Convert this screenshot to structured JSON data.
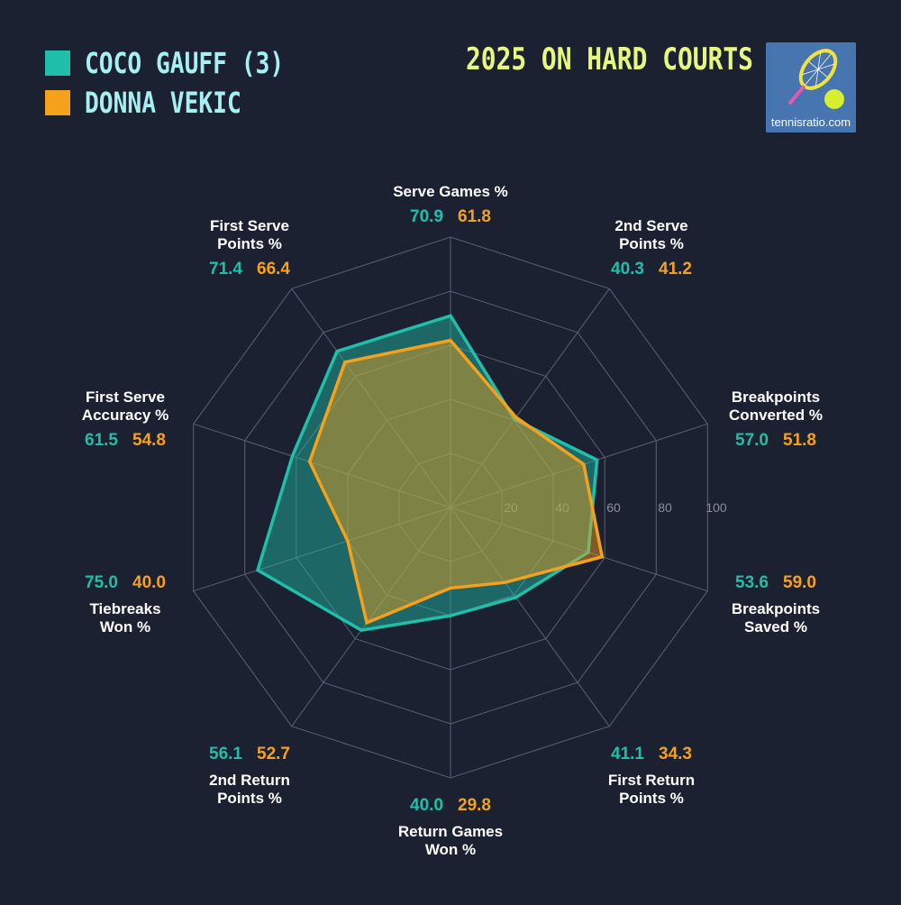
{
  "title": "2025 ON HARD COURTS",
  "logo_text": "tennisratio.com",
  "chart_data": {
    "type": "radar",
    "series": [
      {
        "name": "COCO GAUFF (3)",
        "color": "#1fbfa9",
        "values": [
          70.9,
          40.3,
          57.0,
          53.6,
          41.1,
          40.0,
          56.1,
          75.0,
          61.5,
          71.4
        ]
      },
      {
        "name": "DONNA VEKIC",
        "color": "#f6a11c",
        "values": [
          61.8,
          41.2,
          51.8,
          59.0,
          34.3,
          29.8,
          52.7,
          40.0,
          54.8,
          66.4
        ]
      }
    ],
    "axes": [
      {
        "label": [
          "Serve Games %"
        ],
        "v1": "70.9",
        "v2": "61.8"
      },
      {
        "label": [
          "2nd Serve",
          "Points %"
        ],
        "v1": "40.3",
        "v2": "41.2"
      },
      {
        "label": [
          "Breakpoints",
          "Converted %"
        ],
        "v1": "57.0",
        "v2": "51.8"
      },
      {
        "label": [
          "Breakpoints",
          "Saved %"
        ],
        "v1": "53.6",
        "v2": "59.0"
      },
      {
        "label": [
          "First Return",
          "Points %"
        ],
        "v1": "41.1",
        "v2": "34.3"
      },
      {
        "label": [
          "Return Games",
          "Won %"
        ],
        "v1": "40.0",
        "v2": "29.8"
      },
      {
        "label": [
          "2nd Return",
          "Points %"
        ],
        "v1": "56.1",
        "v2": "52.7"
      },
      {
        "label": [
          "Tiebreaks",
          "Won %"
        ],
        "v1": "75.0",
        "v2": "40.0"
      },
      {
        "label": [
          "First Serve",
          "Accuracy %"
        ],
        "v1": "61.5",
        "v2": "54.8"
      },
      {
        "label": [
          "First Serve",
          "Points %"
        ],
        "v1": "71.4",
        "v2": "66.4"
      }
    ],
    "r_range": [
      0,
      100
    ],
    "ticks": [
      "20",
      "40",
      "60",
      "80",
      "100"
    ],
    "grid": true,
    "legend_position": "top-left"
  }
}
